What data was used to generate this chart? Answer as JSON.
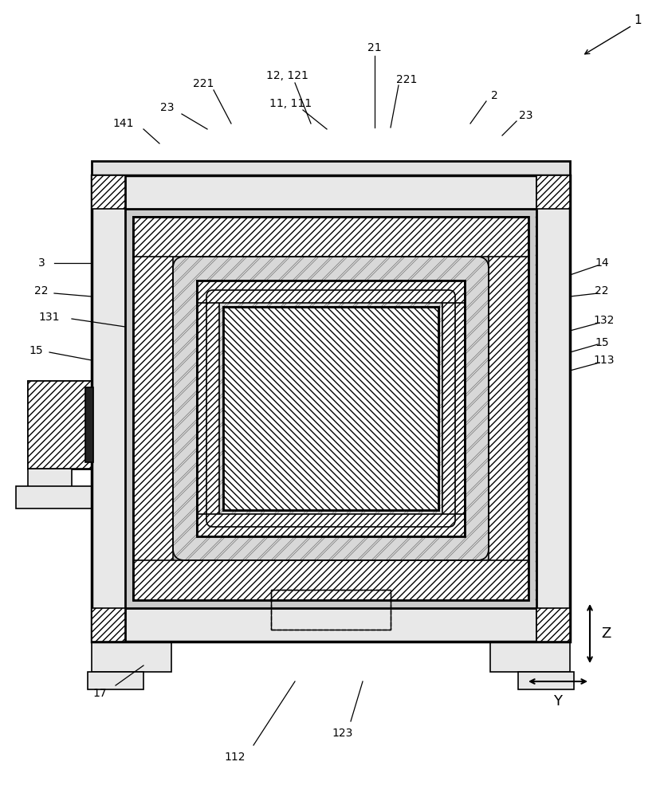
{
  "bg_color": "#ffffff",
  "lc": "#000000",
  "fig_width": 8.33,
  "fig_height": 10.0,
  "dpi": 100,
  "stipple_color": "#c8c8c8",
  "crosshatch_color": "#aaaaaa",
  "hatch_fill": "#ffffff"
}
